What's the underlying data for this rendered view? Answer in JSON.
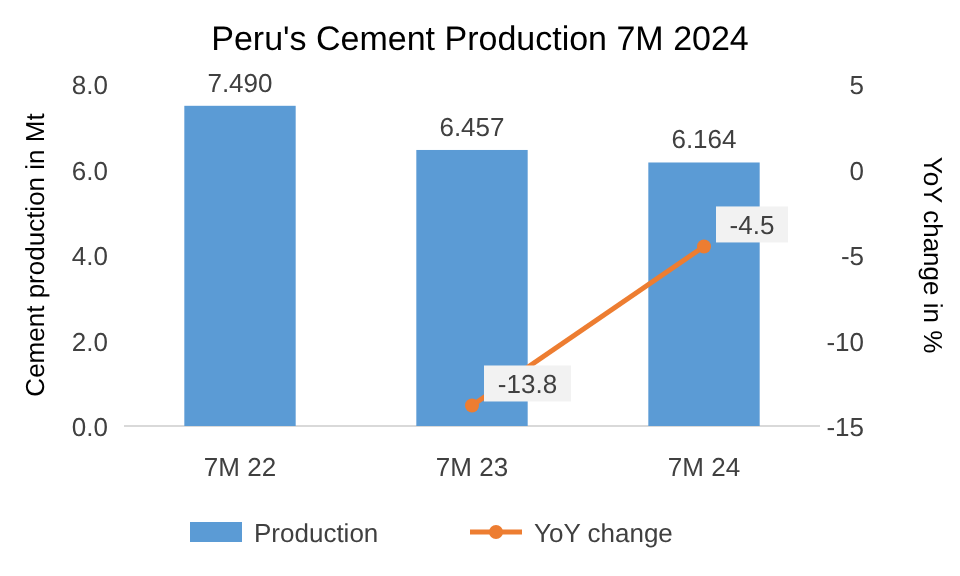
{
  "chart_data": {
    "type": "bar",
    "title": "Peru's Cement Production 7M 2024",
    "ylabel": "Cement production in Mt",
    "y2label": "YoY change in %",
    "categories": [
      "7M 22",
      "7M 23",
      "7M 24"
    ],
    "series": [
      {
        "name": "Production",
        "color": "#5b9bd5",
        "values": [
          7.49,
          6.457,
          6.164
        ],
        "value_labels": [
          "7.490",
          "6.457",
          "6.164"
        ]
      },
      {
        "name": "YoY change",
        "type": "line",
        "axis": "y2",
        "color": "#ed7d31",
        "marker": "circle",
        "values": [
          null,
          -13.8,
          -4.5
        ],
        "value_labels": [
          null,
          "-13.8",
          "-4.5"
        ]
      }
    ],
    "ylim": [
      0,
      8
    ],
    "yticks": [
      {
        "value": 0,
        "label": "0.0"
      },
      {
        "value": 2,
        "label": "2.0"
      },
      {
        "value": 4,
        "label": "4.0"
      },
      {
        "value": 6,
        "label": "6.0"
      },
      {
        "value": 8,
        "label": "8.0"
      }
    ],
    "y2lim": [
      -15,
      5
    ],
    "y2ticks": [
      -15,
      -10,
      -5,
      0,
      5
    ],
    "grid": false,
    "legend": "bottom"
  }
}
